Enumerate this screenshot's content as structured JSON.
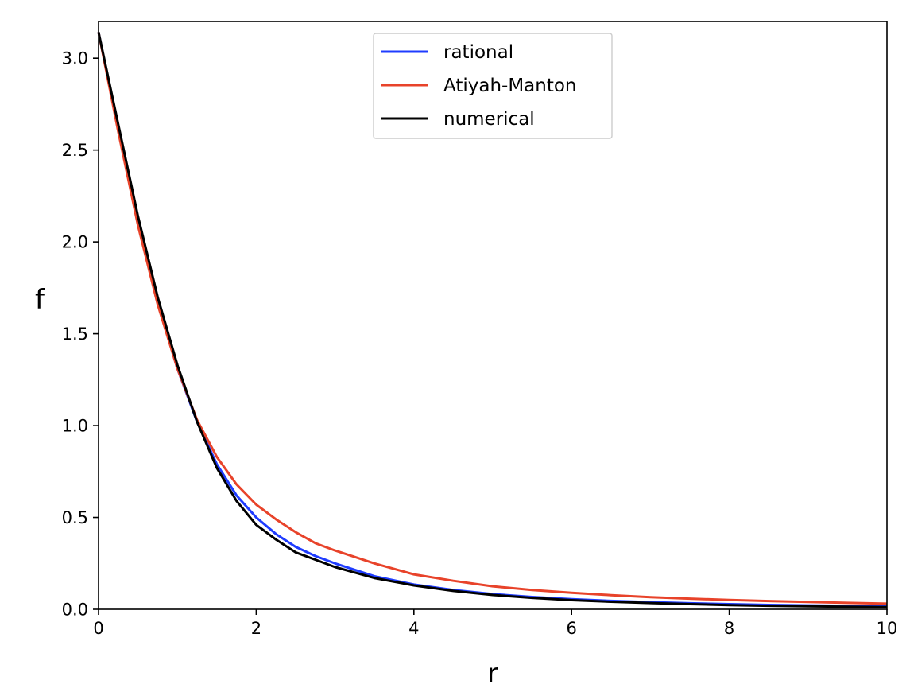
{
  "chart_data": {
    "type": "line",
    "title": "",
    "xlabel": "r",
    "ylabel": "f",
    "xlim": [
      0,
      10
    ],
    "ylim": [
      0,
      3.2
    ],
    "xticks": [
      0,
      2,
      4,
      6,
      8,
      10
    ],
    "xtick_labels": [
      "0",
      "2",
      "4",
      "6",
      "8",
      "10"
    ],
    "yticks": [
      0.0,
      0.5,
      1.0,
      1.5,
      2.0,
      2.5,
      3.0
    ],
    "ytick_labels": [
      "0.0",
      "0.5",
      "1.0",
      "1.5",
      "2.0",
      "2.5",
      "3.0"
    ],
    "grid": false,
    "legend_position": "upper center",
    "x": [
      0,
      0.25,
      0.5,
      0.75,
      1.0,
      1.25,
      1.5,
      1.75,
      2.0,
      2.25,
      2.5,
      2.75,
      3.0,
      3.5,
      4.0,
      4.5,
      5.0,
      5.5,
      6.0,
      6.5,
      7.0,
      7.5,
      8.0,
      8.5,
      9.0,
      9.5,
      10.0
    ],
    "series": [
      {
        "name": "rational",
        "color": "#1f3cff",
        "values": [
          3.1416,
          2.62,
          2.11,
          1.67,
          1.31,
          1.02,
          0.79,
          0.62,
          0.5,
          0.41,
          0.34,
          0.29,
          0.25,
          0.18,
          0.135,
          0.105,
          0.083,
          0.067,
          0.055,
          0.046,
          0.039,
          0.033,
          0.028,
          0.024,
          0.021,
          0.019,
          0.017
        ]
      },
      {
        "name": "Atiyah-Manton",
        "color": "#e8432a",
        "values": [
          3.1416,
          2.6,
          2.09,
          1.66,
          1.31,
          1.03,
          0.83,
          0.68,
          0.57,
          0.49,
          0.42,
          0.36,
          0.32,
          0.25,
          0.19,
          0.155,
          0.125,
          0.105,
          0.09,
          0.077,
          0.066,
          0.058,
          0.051,
          0.045,
          0.04,
          0.035,
          0.031
        ]
      },
      {
        "name": "numerical",
        "color": "#000000",
        "values": [
          3.1416,
          2.64,
          2.14,
          1.7,
          1.33,
          1.02,
          0.77,
          0.59,
          0.46,
          0.38,
          0.31,
          0.27,
          0.23,
          0.17,
          0.13,
          0.1,
          0.078,
          0.062,
          0.05,
          0.041,
          0.034,
          0.028,
          0.023,
          0.019,
          0.016,
          0.014,
          0.012
        ]
      }
    ]
  }
}
